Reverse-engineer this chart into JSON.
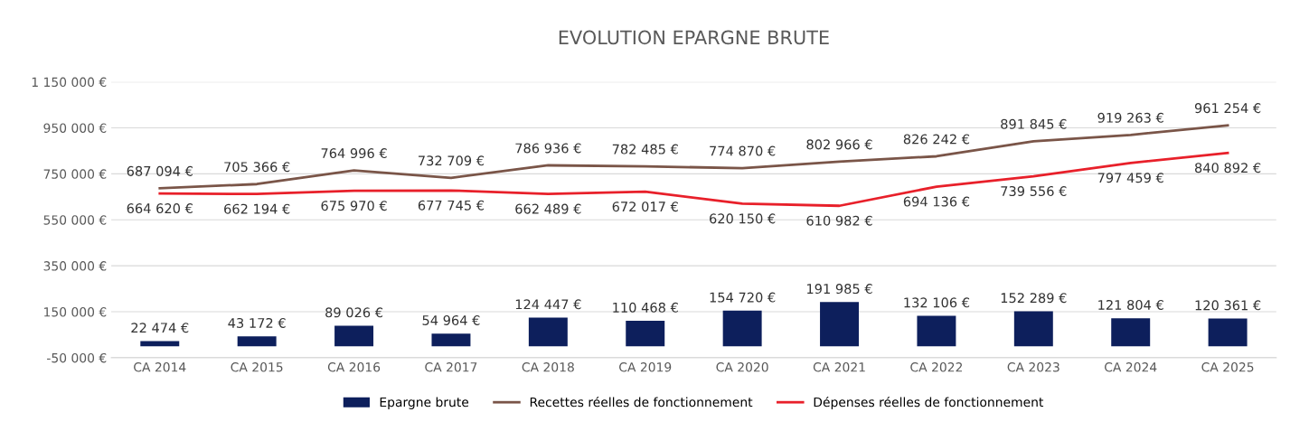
{
  "chart_data": {
    "type": "bar",
    "title": "EVOLUTION EPARGNE BRUTE",
    "categories": [
      "CA 2014",
      "CA 2015",
      "CA 2016",
      "CA 2017",
      "CA 2018",
      "CA 2019",
      "CA 2020",
      "CA 2021",
      "CA 2022",
      "CA 2023",
      "CA 2024",
      "CA 2025"
    ],
    "series": [
      {
        "name": "Epargne brute",
        "color": "#0d1f5c",
        "values": [
          22474,
          43172,
          89026,
          54964,
          124447,
          110468,
          154720,
          191985,
          132106,
          152289,
          121804,
          120361
        ],
        "value_labels": [
          "22 474 €",
          "43 172 €",
          "89 026 €",
          "54 964 €",
          "124 447 €",
          "110 468 €",
          "154 720 €",
          "191 985 €",
          "132 106 €",
          "152 289 €",
          "121 804 €",
          "120 361 €"
        ]
      },
      {
        "name": "Recettes réelles de fonctionnement",
        "type": "line",
        "color": "#7a5548",
        "values": [
          687094,
          705366,
          764996,
          732709,
          786936,
          782485,
          774870,
          802966,
          826242,
          891845,
          919263,
          961254
        ],
        "value_labels": [
          "687 094 €",
          "705 366 €",
          "764 996 €",
          "732 709 €",
          "786 936 €",
          "782 485 €",
          "774 870 €",
          "802 966 €",
          "826 242 €",
          "891 845 €",
          "919 263 €",
          "961 254 €"
        ]
      },
      {
        "name": "Dépenses réelles de fonctionnement",
        "type": "line",
        "color": "#e8202a",
        "values": [
          664620,
          662194,
          675970,
          677745,
          662489,
          672017,
          620150,
          610982,
          694136,
          739556,
          797459,
          840892
        ],
        "value_labels": [
          "664 620 €",
          "662 194 €",
          "675 970 €",
          "677 745 €",
          "662 489 €",
          "672 017 €",
          "620 150 €",
          "610 982 €",
          "694 136 €",
          "739 556 €",
          "797 459 €",
          "840 892 €"
        ]
      }
    ],
    "ylim": [
      -50000,
      1150000
    ],
    "yticks": [
      {
        "value": -50000,
        "label": "-50 000 €"
      },
      {
        "value": 150000,
        "label": "150 000 €"
      },
      {
        "value": 350000,
        "label": "350 000 €"
      },
      {
        "value": 550000,
        "label": "550 000 €"
      },
      {
        "value": 750000,
        "label": "750 000 €"
      },
      {
        "value": 950000,
        "label": "950 000 €"
      },
      {
        "value": 1150000,
        "label": "1 150 000 €"
      }
    ],
    "grid": "y",
    "legend": "bottom",
    "marker": "none",
    "line_style": "solid"
  }
}
